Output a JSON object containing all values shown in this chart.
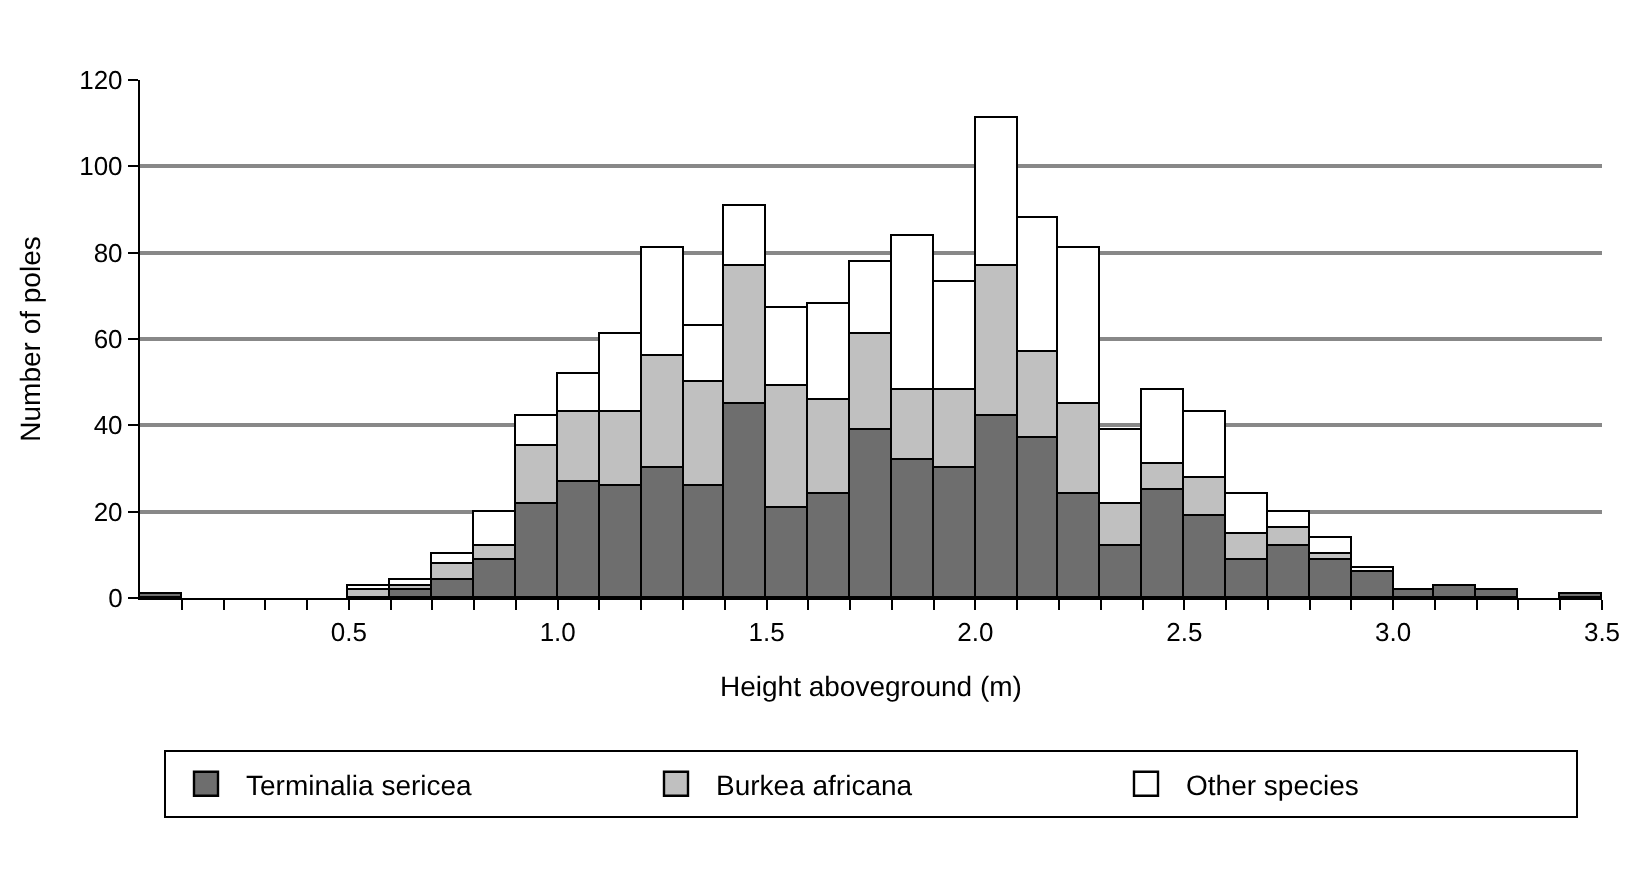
{
  "chart_data": {
    "type": "bar",
    "xlabel": "Height aboveground (m)",
    "ylabel": "Number of poles",
    "x": [
      0.05,
      0.15,
      0.25,
      0.35,
      0.45,
      0.55,
      0.65,
      0.75,
      0.85,
      0.95,
      1.05,
      1.15,
      1.25,
      1.35,
      1.45,
      1.55,
      1.65,
      1.75,
      1.85,
      1.95,
      2.05,
      2.15,
      2.25,
      2.35,
      2.45,
      2.55,
      2.65,
      2.75,
      2.85,
      2.95,
      3.05,
      3.15,
      3.25,
      3.35,
      3.45
    ],
    "stacked": true,
    "series": [
      {
        "name": "Terminalia sericea",
        "color": "#6e6e6e",
        "values": [
          1,
          0,
          0,
          0,
          0,
          0,
          2,
          4,
          9,
          22,
          27,
          26,
          30,
          26,
          45,
          21,
          24,
          39,
          32,
          30,
          42,
          37,
          24,
          12,
          25,
          19,
          9,
          12,
          9,
          6,
          2,
          3,
          2,
          0,
          1
        ]
      },
      {
        "name": "Burkea africana",
        "color": "#c0c0c0",
        "values": [
          0,
          0,
          0,
          0,
          0,
          2,
          1,
          4,
          3,
          13,
          16,
          17,
          26,
          24,
          32,
          28,
          22,
          22,
          16,
          18,
          35,
          20,
          21,
          10,
          6,
          9,
          6,
          4,
          1,
          0,
          0,
          0,
          0,
          0,
          0
        ]
      },
      {
        "name": "Other species",
        "color": "#ffffff",
        "values": [
          0,
          0,
          0,
          0,
          0,
          1,
          1,
          2,
          8,
          7,
          9,
          18,
          25,
          13,
          14,
          18,
          22,
          17,
          36,
          25,
          34,
          31,
          36,
          17,
          17,
          15,
          9,
          4,
          4,
          1,
          0,
          0,
          0,
          0,
          0
        ]
      }
    ],
    "xlim": [
      0,
      3.5
    ],
    "xticks": [
      {
        "value": 0.1,
        "label": null
      },
      {
        "value": 0.2,
        "label": null
      },
      {
        "value": 0.3,
        "label": null
      },
      {
        "value": 0.4,
        "label": null
      },
      {
        "value": 0.5,
        "label": "0.5"
      },
      {
        "value": 0.6,
        "label": null
      },
      {
        "value": 0.7,
        "label": null
      },
      {
        "value": 0.8,
        "label": null
      },
      {
        "value": 0.9,
        "label": null
      },
      {
        "value": 1.0,
        "label": "1.0"
      },
      {
        "value": 1.1,
        "label": null
      },
      {
        "value": 1.2,
        "label": null
      },
      {
        "value": 1.3,
        "label": null
      },
      {
        "value": 1.4,
        "label": null
      },
      {
        "value": 1.5,
        "label": "1.5"
      },
      {
        "value": 1.6,
        "label": null
      },
      {
        "value": 1.7,
        "label": null
      },
      {
        "value": 1.8,
        "label": null
      },
      {
        "value": 1.9,
        "label": null
      },
      {
        "value": 2.0,
        "label": "2.0"
      },
      {
        "value": 2.1,
        "label": null
      },
      {
        "value": 2.2,
        "label": null
      },
      {
        "value": 2.3,
        "label": null
      },
      {
        "value": 2.4,
        "label": null
      },
      {
        "value": 2.5,
        "label": "2.5"
      },
      {
        "value": 2.6,
        "label": null
      },
      {
        "value": 2.7,
        "label": null
      },
      {
        "value": 2.8,
        "label": null
      },
      {
        "value": 2.9,
        "label": null
      },
      {
        "value": 3.0,
        "label": "3.0"
      },
      {
        "value": 3.1,
        "label": null
      },
      {
        "value": 3.2,
        "label": null
      },
      {
        "value": 3.3,
        "label": null
      },
      {
        "value": 3.4,
        "label": null
      },
      {
        "value": 3.5,
        "label": "3.5"
      }
    ],
    "ylim": [
      0,
      120
    ],
    "yticks": [
      0,
      20,
      40,
      60,
      80,
      100,
      120
    ],
    "grid": "y",
    "legend": "bottom"
  }
}
